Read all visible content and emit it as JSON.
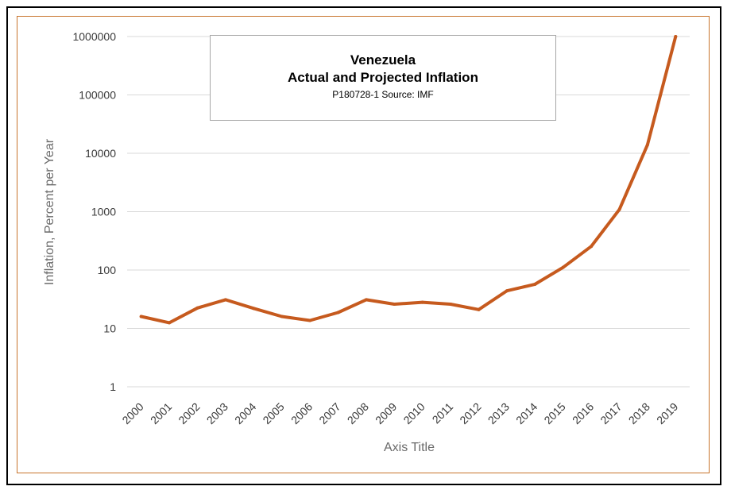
{
  "chart_data": {
    "type": "line",
    "title": "Venezuela",
    "subtitle": "Actual and Projected Inflation",
    "source": "P180728-1 Source: IMF",
    "xlabel": "Axis Title",
    "ylabel": "Inflation, Percent per Year",
    "yscale": "log",
    "ylim": [
      1,
      1000000
    ],
    "y_ticks": [
      1,
      10,
      100,
      1000,
      10000,
      100000,
      1000000
    ],
    "y_tick_labels": [
      "1",
      "10",
      "100",
      "1000",
      "10000",
      "100000",
      "1000000"
    ],
    "grid": true,
    "legend": "none",
    "categories": [
      "2000",
      "2001",
      "2002",
      "2003",
      "2004",
      "2005",
      "2006",
      "2007",
      "2008",
      "2009",
      "2010",
      "2011",
      "2012",
      "2013",
      "2014",
      "2015",
      "2016",
      "2017",
      "2018",
      "2019"
    ],
    "series": [
      {
        "name": "Inflation",
        "color": "#c65a1e",
        "values": [
          16,
          12.5,
          22.4,
          31,
          22,
          16,
          13.7,
          18.7,
          31,
          26,
          28,
          26,
          21,
          44,
          57,
          111,
          254,
          1087,
          14000,
          1000000
        ]
      }
    ]
  }
}
